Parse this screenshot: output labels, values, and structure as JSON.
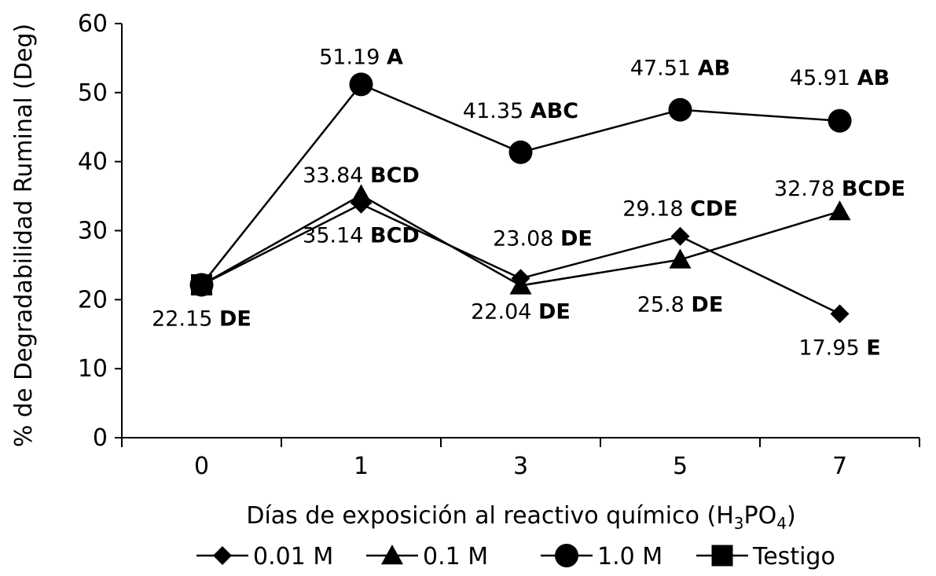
{
  "chart_data": {
    "type": "line",
    "categories": [
      "0",
      "1",
      "3",
      "5",
      "7"
    ],
    "ylim": [
      0,
      60
    ],
    "yticks": [
      0,
      10,
      20,
      30,
      40,
      50,
      60
    ],
    "ylabel": "% de Degradabilidad Ruminal (Deg)",
    "xlabel": {
      "prefix": "Días de exposición al reactivo químico (H",
      "sub1": "3",
      "mid": "PO",
      "sub2": "4",
      "suffix": ")"
    },
    "grid": false,
    "legend_position": "bottom",
    "series": [
      {
        "name": "0.01 M",
        "marker": "diamond",
        "values": [
          22.15,
          33.84,
          23.08,
          29.18,
          17.95
        ],
        "labels": [
          null,
          null,
          {
            "value": "23.08",
            "letters": "DE"
          },
          {
            "value": "29.18",
            "letters": "CDE"
          },
          {
            "value": "17.95",
            "letters": "E"
          }
        ]
      },
      {
        "name": "0.1 M",
        "marker": "triangle",
        "values": [
          22.15,
          35.14,
          22.04,
          25.8,
          32.78
        ],
        "labels": [
          null,
          {
            "value": "35.14",
            "letters": "BCD"
          },
          {
            "value": "22.04",
            "letters": "DE"
          },
          {
            "value": "25.8",
            "letters": "DE"
          },
          {
            "value": "32.78",
            "letters": "BCDE"
          }
        ]
      },
      {
        "name": "1.0 M",
        "marker": "circle",
        "values": [
          22.15,
          51.19,
          41.35,
          47.51,
          45.91
        ],
        "labels": [
          null,
          {
            "value": "51.19",
            "letters": "A"
          },
          {
            "value": "41.35",
            "letters": "ABC"
          },
          {
            "value": "47.51",
            "letters": "AB"
          },
          {
            "value": "45.91",
            "letters": "AB"
          }
        ]
      },
      {
        "name": "Testigo",
        "marker": "square",
        "values": [
          22.15,
          null,
          null,
          null,
          null
        ],
        "labels": [
          {
            "value": "22.15",
            "letters": "DE"
          },
          null,
          null,
          null,
          null
        ]
      }
    ],
    "extra_labels": [
      {
        "series_index": 0,
        "point_index": 1,
        "value": "33.84",
        "letters": "BCD"
      }
    ],
    "colors": {
      "line": "#000000",
      "marker": "#000000"
    }
  }
}
